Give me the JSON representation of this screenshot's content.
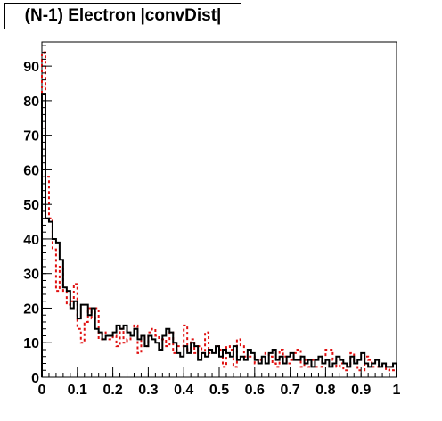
{
  "chart_data": {
    "type": "histogram",
    "title": "(N-1) Electron |convDist|",
    "xlabel": "",
    "ylabel": "",
    "xlim": [
      0,
      1
    ],
    "ylim": [
      0,
      97
    ],
    "bin_width": 0.01,
    "x_ticks": [
      "0",
      "0.1",
      "0.2",
      "0.3",
      "0.4",
      "0.5",
      "0.6",
      "0.7",
      "0.8",
      "0.9",
      "1"
    ],
    "y_ticks": [
      "0",
      "10",
      "20",
      "30",
      "40",
      "50",
      "60",
      "70",
      "80",
      "90"
    ],
    "grid": false,
    "legend": "none",
    "series": [
      {
        "style": "solid",
        "color": "#000000",
        "values": [
          82,
          46,
          45,
          40,
          39,
          34,
          26,
          25,
          20,
          22,
          17,
          21,
          21,
          18,
          20,
          14,
          13,
          11,
          12,
          12,
          13,
          15,
          14,
          15,
          13,
          12,
          14,
          11,
          12,
          9,
          12,
          11,
          10,
          8,
          12,
          14,
          13,
          10,
          7,
          6,
          9,
          7,
          10,
          9,
          5,
          7,
          6,
          8,
          7,
          9,
          6,
          8,
          7,
          6,
          9,
          5,
          6,
          5,
          8,
          7,
          5,
          4,
          6,
          4,
          7,
          8,
          5,
          6,
          4,
          6,
          7,
          5,
          5,
          6,
          4,
          5,
          3,
          5,
          6,
          4,
          5,
          3,
          4,
          6,
          5,
          4,
          3,
          6,
          4,
          5,
          7,
          4,
          3,
          4,
          5,
          3,
          4,
          3,
          3,
          4
        ]
      },
      {
        "style": "dashed",
        "color": "#e01010",
        "values": [
          94,
          58,
          46,
          37,
          25,
          32,
          25,
          21,
          22,
          27,
          14,
          10,
          16,
          20,
          17,
          20,
          11,
          13,
          12,
          11,
          12,
          9,
          14,
          10,
          11,
          13,
          15,
          7,
          12,
          9,
          13,
          14,
          12,
          11,
          11,
          9,
          13,
          7,
          9,
          9,
          15,
          8,
          11,
          7,
          9,
          7,
          13,
          7,
          8,
          9,
          8,
          3,
          9,
          8,
          3,
          11,
          9,
          6,
          6,
          6,
          4,
          5,
          5,
          7,
          6,
          4,
          3,
          8,
          6,
          4,
          5,
          7,
          8,
          3,
          5,
          3,
          5,
          3,
          3,
          6,
          8,
          8,
          5,
          3,
          4,
          2,
          3,
          7,
          4,
          2,
          2,
          6,
          5,
          3,
          3,
          3,
          4,
          2,
          3,
          2
        ]
      }
    ]
  }
}
